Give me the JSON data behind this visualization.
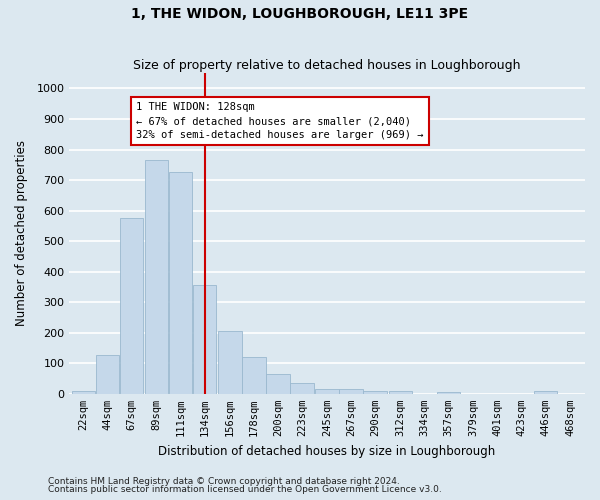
{
  "title": "1, THE WIDON, LOUGHBOROUGH, LE11 3PE",
  "subtitle": "Size of property relative to detached houses in Loughborough",
  "xlabel": "Distribution of detached houses by size in Loughborough",
  "ylabel": "Number of detached properties",
  "footnote1": "Contains HM Land Registry data © Crown copyright and database right 2024.",
  "footnote2": "Contains public sector information licensed under the Open Government Licence v3.0.",
  "bar_labels": [
    "22sqm",
    "44sqm",
    "67sqm",
    "89sqm",
    "111sqm",
    "134sqm",
    "156sqm",
    "178sqm",
    "200sqm",
    "223sqm",
    "245sqm",
    "267sqm",
    "290sqm",
    "312sqm",
    "334sqm",
    "357sqm",
    "379sqm",
    "401sqm",
    "423sqm",
    "446sqm",
    "468sqm"
  ],
  "bar_heights": [
    10,
    128,
    575,
    765,
    725,
    355,
    207,
    120,
    65,
    35,
    15,
    15,
    8,
    8,
    0,
    5,
    0,
    0,
    0,
    8,
    0
  ],
  "bin_lefts": [
    11,
    33,
    55,
    78,
    100,
    122,
    145,
    167,
    189,
    211,
    234,
    256,
    278,
    301,
    323,
    345,
    368,
    390,
    412,
    434,
    457
  ],
  "bin_width": 22,
  "vline_x": 133,
  "annotation_line1": "1 THE WIDON: 128sqm",
  "annotation_line2": "← 67% of detached houses are smaller (2,040)",
  "annotation_line3": "32% of semi-detached houses are larger (969) →",
  "bar_color": "#c5d8ea",
  "bar_edge_color": "#9ab8cf",
  "vline_color": "#cc0000",
  "annotation_box_facecolor": "#ffffff",
  "annotation_box_edgecolor": "#cc0000",
  "background_color": "#dce8f0",
  "grid_color": "#ffffff",
  "ylim": [
    0,
    1050
  ],
  "yticks": [
    0,
    100,
    200,
    300,
    400,
    500,
    600,
    700,
    800,
    900,
    1000
  ],
  "title_fontsize": 10,
  "subtitle_fontsize": 9,
  "xlabel_fontsize": 8.5,
  "ylabel_fontsize": 8.5,
  "tick_fontsize": 8,
  "annot_fontsize": 7.5,
  "footnote_fontsize": 6.5
}
